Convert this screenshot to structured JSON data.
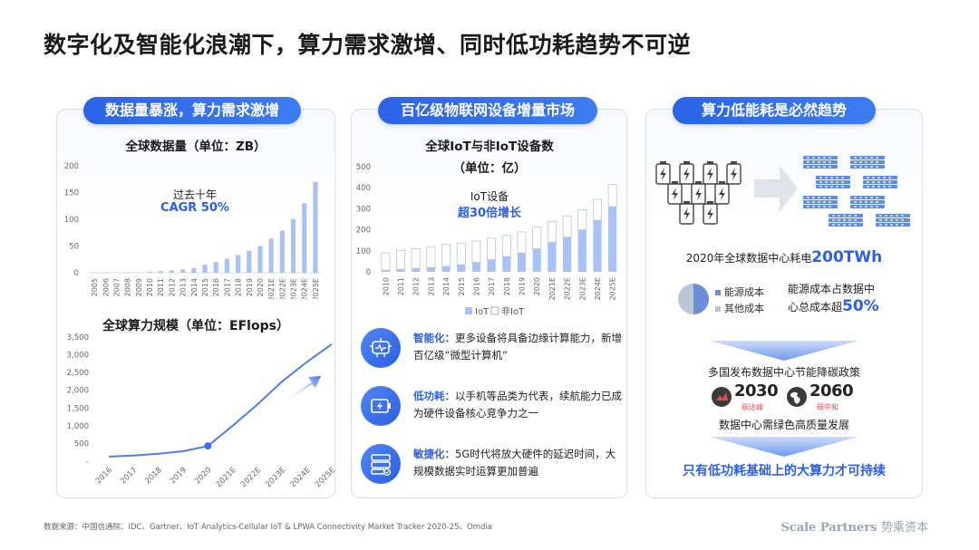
{
  "title": "数字化及智能化浪潮下，算力需求激增、同时低功耗趋势不可逆",
  "panels": {
    "left": {
      "pill": "数据量暴涨，算力需求激增",
      "chart1_title": "全球数据量（单位：ZB）",
      "chart1_annot1": "过去十年",
      "chart1_annot2": "CAGR 50%",
      "chart2_title": "全球算力规模（单位：EFlops）"
    },
    "middle": {
      "pill": "百亿级物联网设备增量市场",
      "chart_title_line1": "全球IoT与非IoT设备数",
      "chart_title_line2": "（单位：亿）",
      "annot1": "IoT设备",
      "annot2": "超30倍增长",
      "features": [
        {
          "icon": "chip-face-icon",
          "keyword": "智能化：",
          "text": "更多设备将具备边缘计算能力，新增百亿级“微型计算机”"
        },
        {
          "icon": "battery-icon",
          "keyword": "低功耗：",
          "text": "以手机等品类为代表，续航能力已成为硬件设备核心竞争力之一"
        },
        {
          "icon": "server-icon",
          "keyword": "敏捷化：",
          "text": "5G时代将放大硬件的延迟时间，大规模数据实时运算更加普遍"
        }
      ]
    },
    "right": {
      "pill": "算力低能耗是必然趋势",
      "consumption_prefix": "2020年全球数据中心耗电",
      "consumption_value": "200TWh",
      "legend_energy": "能源成本",
      "legend_other": "其他成本",
      "share_line1": "能源成本占数据中",
      "share_line2": "心总成本超",
      "share_value": "50%",
      "policy": "多国发布数据中心节能降碳政策",
      "year1": "2030",
      "year1_label": "碳达峰",
      "year2": "2060",
      "year2_label": "碳中和",
      "green": "数据中心需绿色高质量发展",
      "conclusion": "只有低功耗基础上的大算力才可持续"
    }
  },
  "chart_data": [
    {
      "type": "bar",
      "title": "全球数据量（单位：ZB）",
      "categories": [
        "2005",
        "2006",
        "2007",
        "2008",
        "2009",
        "2010",
        "2011",
        "2012",
        "2013",
        "2014",
        "2015",
        "2016",
        "2017",
        "2018",
        "2019",
        "2020",
        "2021E",
        "2022E",
        "2023E",
        "2024E",
        "2025E"
      ],
      "values": [
        0.1,
        0.2,
        0.3,
        0.5,
        0.8,
        2,
        3,
        4,
        6,
        9,
        15,
        20,
        26,
        33,
        41,
        50,
        64,
        79,
        100,
        130,
        170
      ],
      "yticks": [
        0,
        50,
        100,
        150,
        200
      ],
      "ylim": [
        0,
        200
      ],
      "color": "#a9c2f5"
    },
    {
      "type": "line",
      "title": "全球算力规模（单位：EFlops）",
      "categories": [
        "2016",
        "2017",
        "2018",
        "2019",
        "2020",
        "2021E",
        "2022E",
        "2023E",
        "2024E",
        "2025E"
      ],
      "values": [
        130,
        160,
        210,
        280,
        430,
        1000,
        1600,
        2250,
        2800,
        3300
      ],
      "yticks": [
        "-",
        "500",
        "1,000",
        "1,500",
        "2,000",
        "2,500",
        "3,000",
        "3,500"
      ],
      "ylim": [
        0,
        3500
      ],
      "color": "#4a7ef0"
    },
    {
      "type": "bar",
      "title": "全球IoT与非IoT设备数（单位：亿）",
      "categories": [
        "2010",
        "2011",
        "2012",
        "2013",
        "2014",
        "2015",
        "2016",
        "2017",
        "2018",
        "2019",
        "2020",
        "2021E",
        "2022E",
        "2023E",
        "2024E",
        "2025E"
      ],
      "series": [
        {
          "name": "IoT",
          "values": [
            8,
            12,
            16,
            20,
            26,
            34,
            45,
            58,
            73,
            90,
            110,
            140,
            165,
            200,
            245,
            310
          ]
        },
        {
          "name": "非IoT",
          "values": [
            82,
            90,
            95,
            100,
            105,
            103,
            102,
            102,
            100,
            100,
            102,
            100,
            100,
            95,
            100,
            105
          ]
        }
      ],
      "yticks": [
        0,
        100,
        200,
        300,
        400,
        500
      ],
      "ylim": [
        0,
        500
      ],
      "colors": {
        "IoT": "#a9c2f5",
        "非IoT": "#ffffff"
      }
    }
  ],
  "pie": {
    "energy": 50,
    "other": 50,
    "colors": {
      "energy": "#6d8fd8",
      "other": "#bcc6da"
    }
  },
  "footer": {
    "source": "数据来源：中国信通院、IDC、Gartner、IoT Analytics-Cellular IoT & LPWA Connectivity Market Tracker 2020-25、Omdia",
    "brand_en": "Scale Partners",
    "brand_cn": "势乘资本"
  }
}
